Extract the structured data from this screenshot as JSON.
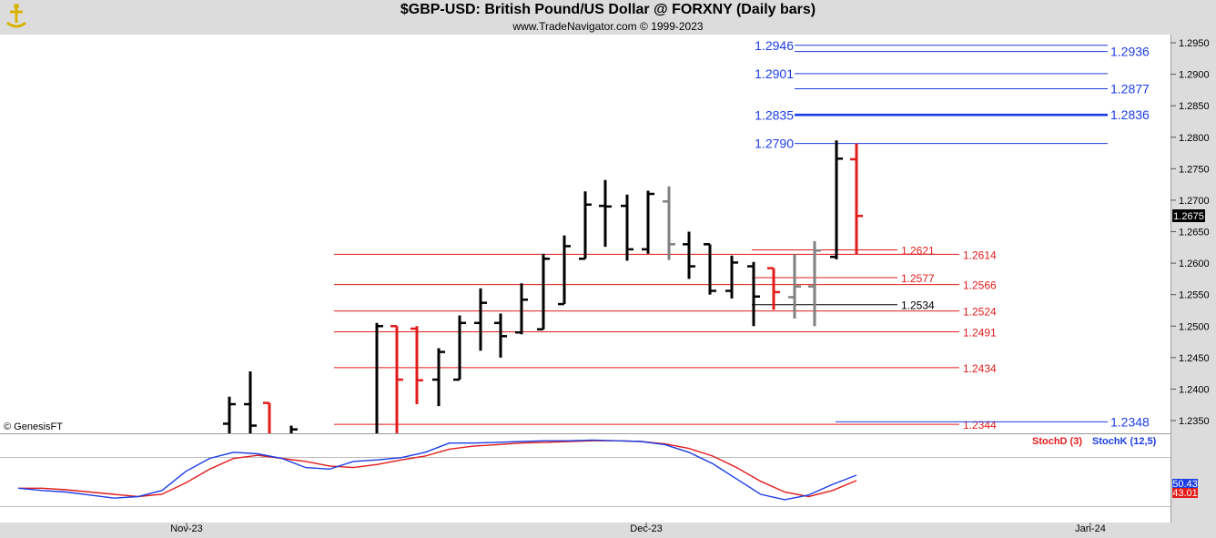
{
  "header": {
    "title": "$GBP-USD:  British Pound/US Dollar @ FORXNY  (Daily bars)",
    "subtitle": "www.TradeNavigator.com © 1999-2023"
  },
  "footer": {
    "credit": "© GenesisFT"
  },
  "colors": {
    "up_bar": "#000000",
    "down_bar": "#e21b1b",
    "neutral_bar": "#808080",
    "blue_level": "#1b3de6",
    "red_level": "#e21b1b",
    "stoch_k": "#1b3de6",
    "stoch_d": "#e21b1b",
    "background": "#ffffff",
    "frame": "#dcdcdc"
  },
  "chart_data": {
    "type": "ohlc",
    "y_axis": {
      "ticks": [
        "1.2350",
        "1.2400",
        "1.2450",
        "1.2500",
        "1.2550",
        "1.2600",
        "1.2650",
        "1.2700",
        "1.2750",
        "1.2800",
        "1.2850",
        "1.2900",
        "1.2950"
      ]
    },
    "last_price": "1.2675",
    "x_axis": {
      "labels": [
        "Nov-23",
        "Dec-23",
        "Jan-24"
      ]
    },
    "bars": [
      {
        "o": 1.2345,
        "h": 1.2388,
        "l": 1.23,
        "c": 1.2376,
        "color": "up"
      },
      {
        "o": 1.2376,
        "h": 1.2428,
        "l": 1.23,
        "c": 1.2342,
        "color": "up"
      },
      {
        "o": 1.2378,
        "h": 1.2378,
        "l": 1.23,
        "c": 1.232,
        "color": "down"
      },
      {
        "o": 1.232,
        "h": 1.2342,
        "l": 1.23,
        "c": 1.2336,
        "color": "up"
      },
      {
        "o": 1.232,
        "h": 1.2505,
        "l": 1.23,
        "c": 1.25,
        "color": "up"
      },
      {
        "o": 1.25,
        "h": 1.25,
        "l": 1.233,
        "c": 1.2415,
        "color": "down"
      },
      {
        "o": 1.2496,
        "h": 1.25,
        "l": 1.2376,
        "c": 1.2414,
        "color": "down"
      },
      {
        "o": 1.2415,
        "h": 1.2465,
        "l": 1.2373,
        "c": 1.2459,
        "color": "up"
      },
      {
        "o": 1.2415,
        "h": 1.2517,
        "l": 1.2415,
        "c": 1.2505,
        "color": "up"
      },
      {
        "o": 1.2505,
        "h": 1.256,
        "l": 1.2461,
        "c": 1.2537,
        "color": "up"
      },
      {
        "o": 1.2505,
        "h": 1.252,
        "l": 1.245,
        "c": 1.2484,
        "color": "up"
      },
      {
        "o": 1.249,
        "h": 1.2568,
        "l": 1.2487,
        "c": 1.2542,
        "color": "up"
      },
      {
        "o": 1.2495,
        "h": 1.2615,
        "l": 1.2495,
        "c": 1.2607,
        "color": "up"
      },
      {
        "o": 1.2535,
        "h": 1.2644,
        "l": 1.2535,
        "c": 1.2627,
        "color": "up"
      },
      {
        "o": 1.2607,
        "h": 1.2714,
        "l": 1.2607,
        "c": 1.2693,
        "color": "up"
      },
      {
        "o": 1.2691,
        "h": 1.2732,
        "l": 1.2626,
        "c": 1.269,
        "color": "up"
      },
      {
        "o": 1.2691,
        "h": 1.2709,
        "l": 1.2604,
        "c": 1.2622,
        "color": "up"
      },
      {
        "o": 1.2622,
        "h": 1.2715,
        "l": 1.2615,
        "c": 1.271,
        "color": "up"
      },
      {
        "o": 1.2698,
        "h": 1.2722,
        "l": 1.2605,
        "c": 1.263,
        "color": "neutral"
      },
      {
        "o": 1.263,
        "h": 1.265,
        "l": 1.2575,
        "c": 1.2595,
        "color": "up"
      },
      {
        "o": 1.263,
        "h": 1.263,
        "l": 1.255,
        "c": 1.2556,
        "color": "up"
      },
      {
        "o": 1.2556,
        "h": 1.2612,
        "l": 1.2544,
        "c": 1.2601,
        "color": "up"
      },
      {
        "o": 1.2595,
        "h": 1.2602,
        "l": 1.25,
        "c": 1.2547,
        "color": "up"
      },
      {
        "o": 1.2592,
        "h": 1.2592,
        "l": 1.2526,
        "c": 1.2554,
        "color": "down"
      },
      {
        "o": 1.2546,
        "h": 1.2614,
        "l": 1.2512,
        "c": 1.2563,
        "color": "neutral"
      },
      {
        "o": 1.2563,
        "h": 1.2635,
        "l": 1.25,
        "c": 1.262,
        "color": "neutral"
      },
      {
        "o": 1.261,
        "h": 1.2795,
        "l": 1.2606,
        "c": 1.2766,
        "color": "up"
      },
      {
        "o": 1.2765,
        "h": 1.279,
        "l": 1.2614,
        "c": 1.2675,
        "color": "down"
      }
    ],
    "levels": [
      {
        "value": 1.2946,
        "label": "1.2946",
        "color": "blue",
        "side": "left"
      },
      {
        "value": 1.2936,
        "label": "1.2936",
        "color": "blue",
        "side": "right"
      },
      {
        "value": 1.2901,
        "label": "1.2901",
        "color": "blue",
        "side": "left"
      },
      {
        "value": 1.2877,
        "label": "1.2877",
        "color": "blue",
        "side": "right"
      },
      {
        "value": 1.2835,
        "label": "1.2835",
        "color": "blue",
        "side": "left"
      },
      {
        "value": 1.2836,
        "label": "1.2836",
        "color": "blue",
        "side": "right"
      },
      {
        "value": 1.279,
        "label": "1.2790",
        "color": "blue",
        "side": "left"
      },
      {
        "value": 1.2621,
        "label": "1.2621",
        "color": "red",
        "side": "mid"
      },
      {
        "value": 1.2614,
        "label": "1.2614",
        "color": "red",
        "side": "right"
      },
      {
        "value": 1.2577,
        "label": "1.2577",
        "color": "red",
        "side": "mid"
      },
      {
        "value": 1.2566,
        "label": "1.2566",
        "color": "red",
        "side": "right"
      },
      {
        "value": 1.2534,
        "label": "1.2534",
        "color": "black",
        "side": "mid"
      },
      {
        "value": 1.2524,
        "label": "1.2524",
        "color": "red",
        "side": "right"
      },
      {
        "value": 1.2491,
        "label": "1.2491",
        "color": "red",
        "side": "right"
      },
      {
        "value": 1.2434,
        "label": "1.2434",
        "color": "red",
        "side": "right"
      },
      {
        "value": 1.2344,
        "label": "1.2344",
        "color": "red",
        "side": "right"
      },
      {
        "value": 1.2348,
        "label": "1.2348",
        "color": "blue",
        "side": "right"
      }
    ],
    "stochastic": {
      "d_label": "StochD (3)",
      "k_label": "StochK (12,5)",
      "k_last": "50.43",
      "d_last": "43.01",
      "k": [
        33,
        30,
        28,
        24,
        20,
        22,
        30,
        55,
        72,
        80,
        78,
        72,
        60,
        58,
        68,
        70,
        73,
        80,
        92,
        92,
        93,
        94,
        95,
        95,
        96,
        95,
        94,
        90,
        80,
        65,
        45,
        25,
        18,
        24,
        38,
        50
      ],
      "d": [
        33,
        33,
        31,
        28,
        25,
        22,
        25,
        40,
        58,
        72,
        76,
        72,
        68,
        62,
        60,
        64,
        70,
        75,
        84,
        88,
        90,
        92,
        93,
        94,
        95,
        95,
        94,
        91,
        85,
        75,
        60,
        42,
        28,
        22,
        30,
        43
      ]
    }
  }
}
